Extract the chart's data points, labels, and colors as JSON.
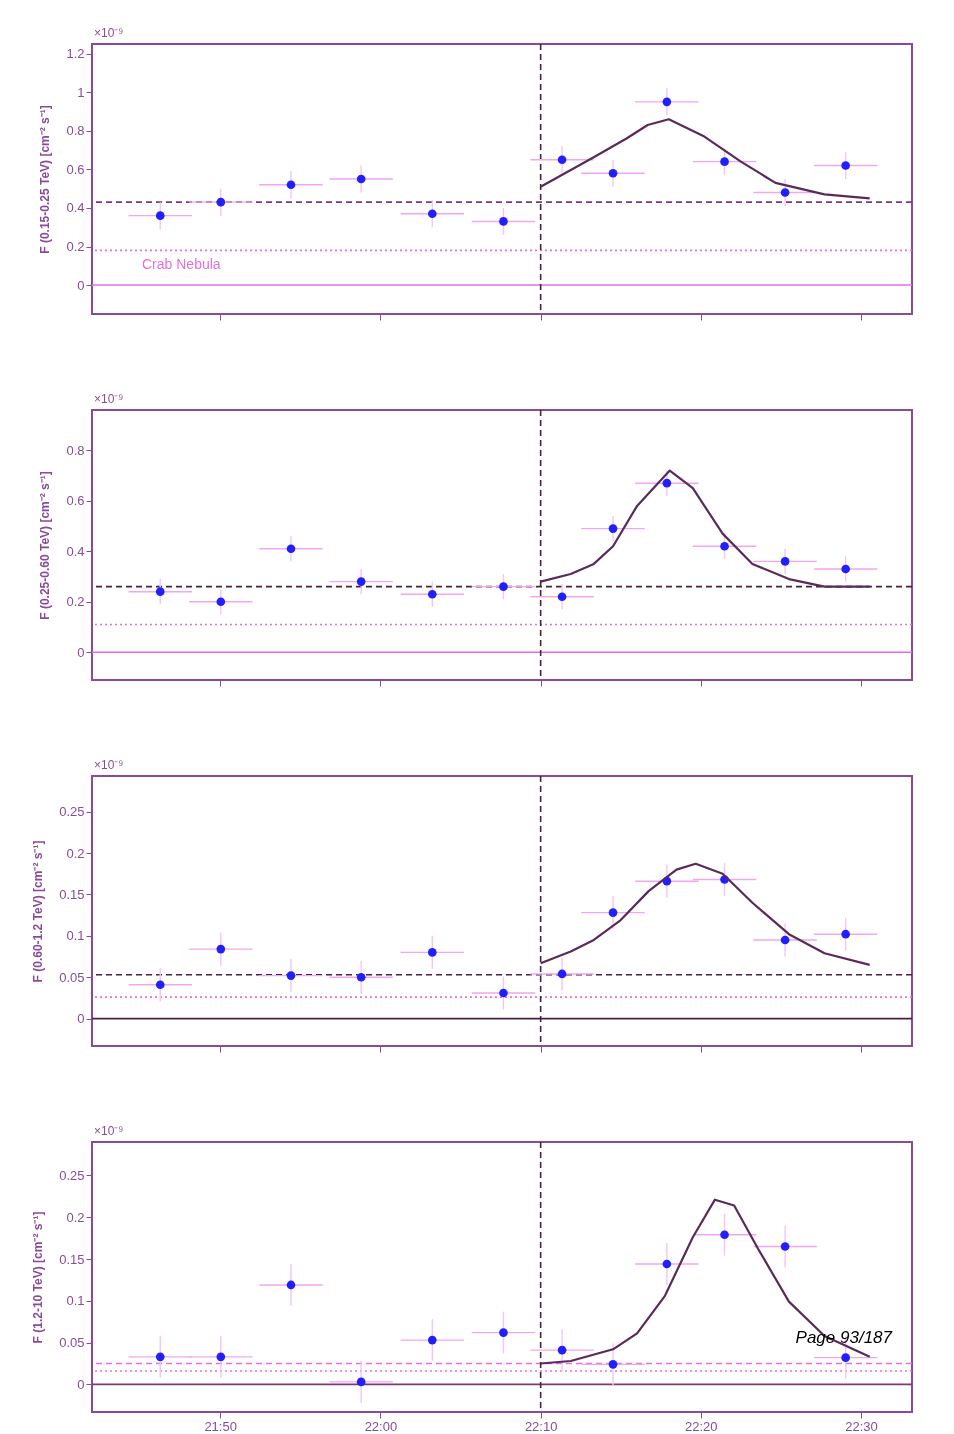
{
  "chart_data": [
    {
      "type": "scatter",
      "ylabel": "F (0.15-0.25 TeV) [cm⁻² s⁻¹]",
      "annotations": [
        "×10⁻⁹"
      ],
      "grid": false,
      "tick_labels": "y",
      "xlim": [
        21.7,
        22.553
      ],
      "xticks": [
        {
          "value": 21.8333,
          "label": null
        },
        {
          "value": 22,
          "label": null
        },
        {
          "value": 22.1667,
          "label": null
        },
        {
          "value": 22.3333,
          "label": null
        },
        {
          "value": 22.5,
          "label": null
        }
      ],
      "ylim": [
        -0.15,
        1.25
      ],
      "yticks": [
        0,
        0.2,
        0.4,
        0.6,
        0.8,
        1,
        1.2
      ],
      "series": [
        {
          "type": "scatter",
          "marker": "circle",
          "color": "#2020ff",
          "x": [
            21.771,
            21.834,
            21.907,
            21.98,
            22.054,
            22.128,
            22.189,
            22.242,
            22.298,
            22.358,
            22.421,
            22.484
          ],
          "values": [
            0.36,
            0.43,
            0.52,
            0.55,
            0.37,
            0.33,
            0.65,
            0.58,
            0.95,
            0.64,
            0.48,
            0.62
          ],
          "errors": [
            0.07,
            0.07,
            0.07,
            0.07,
            0.07,
            0.07,
            0.07,
            0.07,
            0.07,
            0.07,
            0.07,
            0.07
          ],
          "xerrors": [
            0.033,
            0.033,
            0.033,
            0.033,
            0.033,
            0.033,
            0.033,
            0.033,
            0.033,
            0.033,
            0.033,
            0.033
          ]
        },
        {
          "type": "line",
          "color": "#5a2a5a",
          "x": [
            22.1667,
            22.221,
            22.256,
            22.278,
            22.3,
            22.337,
            22.375,
            22.411,
            22.462,
            22.509
          ],
          "values": [
            0.51,
            0.66,
            0.76,
            0.83,
            0.86,
            0.77,
            0.64,
            0.53,
            0.47,
            0.45
          ]
        }
      ],
      "ref_lines": [
        {
          "axis": "y",
          "value": 0,
          "color": "#e070e0",
          "line_style": "solid"
        },
        {
          "axis": "y",
          "value": 0.43,
          "color": "#7a3a7a",
          "line_style": "dashed"
        },
        {
          "axis": "y",
          "value": 0.18,
          "color": "#e070e0",
          "line_style": "dotted",
          "label": "Crab Nebula"
        },
        {
          "axis": "x",
          "value": 22.1667,
          "color": "#4a2040",
          "line_style": "dashed"
        }
      ]
    },
    {
      "type": "scatter",
      "ylabel": "F (0.25-0.60 TeV) [cm⁻² s⁻¹]",
      "annotations": [
        "×10⁻⁹"
      ],
      "grid": false,
      "tick_labels": "y",
      "xlim": [
        21.7,
        22.553
      ],
      "xticks": [
        {
          "value": 21.8333,
          "label": null
        },
        {
          "value": 22,
          "label": null
        },
        {
          "value": 22.1667,
          "label": null
        },
        {
          "value": 22.3333,
          "label": null
        },
        {
          "value": 22.5,
          "label": null
        }
      ],
      "ylim": [
        -0.11,
        0.96
      ],
      "yticks": [
        0,
        0.2,
        0.4,
        0.6,
        0.8
      ],
      "series": [
        {
          "type": "scatter",
          "marker": "circle",
          "color": "#2020ff",
          "x": [
            21.771,
            21.834,
            21.907,
            21.98,
            22.054,
            22.128,
            22.189,
            22.242,
            22.298,
            22.358,
            22.421,
            22.484
          ],
          "values": [
            0.24,
            0.2,
            0.41,
            0.28,
            0.23,
            0.26,
            0.22,
            0.49,
            0.67,
            0.42,
            0.36,
            0.33
          ],
          "errors": [
            0.05,
            0.05,
            0.05,
            0.05,
            0.05,
            0.05,
            0.05,
            0.05,
            0.05,
            0.05,
            0.05,
            0.05
          ],
          "xerrors": [
            0.033,
            0.033,
            0.033,
            0.033,
            0.033,
            0.033,
            0.033,
            0.033,
            0.033,
            0.033,
            0.033,
            0.033
          ]
        },
        {
          "type": "line",
          "color": "#5a2a5a",
          "x": [
            22.1667,
            22.198,
            22.222,
            22.242,
            22.267,
            22.301,
            22.325,
            22.356,
            22.387,
            22.425,
            22.462,
            22.509
          ],
          "values": [
            0.28,
            0.31,
            0.35,
            0.42,
            0.58,
            0.72,
            0.65,
            0.47,
            0.35,
            0.29,
            0.26,
            0.26
          ]
        }
      ],
      "ref_lines": [
        {
          "axis": "y",
          "value": 0,
          "color": "#e070e0",
          "line_style": "solid"
        },
        {
          "axis": "y",
          "value": 0.26,
          "color": "#4a2040",
          "line_style": "dashed"
        },
        {
          "axis": "y",
          "value": 0.11,
          "color": "#e070e0",
          "line_style": "dotted"
        },
        {
          "axis": "x",
          "value": 22.1667,
          "color": "#4a2040",
          "line_style": "dashed"
        }
      ]
    },
    {
      "type": "scatter",
      "ylabel": "F (0.60-1.2 TeV) [cm⁻² s⁻¹]",
      "annotations": [
        "×10⁻⁹"
      ],
      "grid": false,
      "tick_labels": "y",
      "xlim": [
        21.7,
        22.553
      ],
      "xticks": [
        {
          "value": 21.8333,
          "label": null
        },
        {
          "value": 22,
          "label": null
        },
        {
          "value": 22.1667,
          "label": null
        },
        {
          "value": 22.3333,
          "label": null
        },
        {
          "value": 22.5,
          "label": null
        }
      ],
      "ylim": [
        -0.033,
        0.293
      ],
      "yticks": [
        0,
        0.05,
        0.1,
        0.15,
        0.2,
        0.25
      ],
      "series": [
        {
          "type": "scatter",
          "marker": "circle",
          "color": "#2020ff",
          "x": [
            21.771,
            21.834,
            21.907,
            21.98,
            22.054,
            22.128,
            22.189,
            22.242,
            22.298,
            22.358,
            22.421,
            22.484
          ],
          "values": [
            0.041,
            0.084,
            0.052,
            0.05,
            0.08,
            0.031,
            0.054,
            0.128,
            0.166,
            0.168,
            0.095,
            0.102
          ],
          "errors": [
            0.02,
            0.02,
            0.02,
            0.02,
            0.02,
            0.02,
            0.02,
            0.02,
            0.02,
            0.02,
            0.02,
            0.02
          ],
          "xerrors": [
            0.033,
            0.033,
            0.033,
            0.033,
            0.033,
            0.033,
            0.033,
            0.033,
            0.033,
            0.033,
            0.033,
            0.033
          ]
        },
        {
          "type": "line",
          "color": "#5a2a5a",
          "x": [
            22.1667,
            22.198,
            22.222,
            22.25,
            22.279,
            22.308,
            22.328,
            22.356,
            22.387,
            22.425,
            22.462,
            22.509
          ],
          "values": [
            0.067,
            0.081,
            0.095,
            0.119,
            0.154,
            0.18,
            0.187,
            0.175,
            0.14,
            0.102,
            0.079,
            0.065
          ]
        }
      ],
      "ref_lines": [
        {
          "axis": "y",
          "value": 0,
          "color": "#4a2040",
          "line_style": "solid"
        },
        {
          "axis": "y",
          "value": 0.053,
          "color": "#4a2040",
          "line_style": "dashed"
        },
        {
          "axis": "y",
          "value": 0.026,
          "color": "#e070e0",
          "line_style": "dotted"
        },
        {
          "axis": "x",
          "value": 22.1667,
          "color": "#4a2040",
          "line_style": "dashed"
        }
      ]
    },
    {
      "type": "scatter",
      "ylabel": "F (1.2-10 TeV) [cm⁻² s⁻¹]",
      "annotations": [
        "×10⁻⁹",
        "Page 93/187"
      ],
      "grid": false,
      "xlim": [
        21.7,
        22.553
      ],
      "xticks": [
        {
          "value": 21.8333,
          "label": "21:50"
        },
        {
          "value": 22,
          "label": "22:00"
        },
        {
          "value": 22.1667,
          "label": "22:10"
        },
        {
          "value": 22.3333,
          "label": "22:20"
        },
        {
          "value": 22.5,
          "label": "22:30"
        }
      ],
      "ylim": [
        -0.033,
        0.29
      ],
      "yticks": [
        0,
        0.05,
        0.1,
        0.15,
        0.2,
        0.25
      ],
      "series": [
        {
          "type": "scatter",
          "marker": "circle",
          "color": "#2020ff",
          "x": [
            21.771,
            21.834,
            21.907,
            21.98,
            22.054,
            22.128,
            22.189,
            22.242,
            22.298,
            22.358,
            22.421,
            22.484
          ],
          "values": [
            0.033,
            0.033,
            0.119,
            0.003,
            0.053,
            0.062,
            0.041,
            0.024,
            0.144,
            0.179,
            0.165,
            0.032
          ],
          "errors": [
            0.025,
            0.025,
            0.025,
            0.025,
            0.025,
            0.025,
            0.025,
            0.025,
            0.025,
            0.025,
            0.025,
            0.025
          ],
          "xerrors": [
            0.033,
            0.033,
            0.033,
            0.033,
            0.033,
            0.033,
            0.033,
            0.033,
            0.033,
            0.033,
            0.033,
            0.033
          ]
        },
        {
          "type": "line",
          "color": "#5a2a5a",
          "x": [
            22.1667,
            22.198,
            22.242,
            22.267,
            22.296,
            22.325,
            22.348,
            22.368,
            22.393,
            22.425,
            22.462,
            22.509
          ],
          "values": [
            0.025,
            0.028,
            0.042,
            0.061,
            0.106,
            0.176,
            0.221,
            0.214,
            0.162,
            0.099,
            0.058,
            0.033
          ]
        }
      ],
      "ref_lines": [
        {
          "axis": "y",
          "value": 0,
          "color": "#7a3a7a",
          "line_style": "solid"
        },
        {
          "axis": "y",
          "value": 0.025,
          "color": "#e070e0",
          "line_style": "dashed"
        },
        {
          "axis": "y",
          "value": 0.016,
          "color": "#e070e0",
          "line_style": "dotted"
        },
        {
          "axis": "x",
          "value": 22.1667,
          "color": "#4a2040",
          "line_style": "dashed"
        }
      ]
    }
  ]
}
